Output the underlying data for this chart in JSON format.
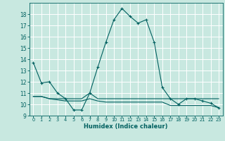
{
  "title": "",
  "xlabel": "Humidex (Indice chaleur)",
  "ylabel": "",
  "bg_color": "#c8e8e0",
  "line_color": "#006060",
  "grid_color": "#ffffff",
  "x_data": [
    0,
    1,
    2,
    3,
    4,
    5,
    6,
    7,
    8,
    9,
    10,
    11,
    12,
    13,
    14,
    15,
    16,
    17,
    18,
    19,
    20,
    21,
    22,
    23
  ],
  "y_main": [
    13.7,
    11.9,
    12.0,
    11.0,
    10.5,
    9.5,
    9.5,
    11.0,
    13.3,
    15.5,
    17.5,
    18.5,
    17.8,
    17.2,
    17.5,
    15.5,
    11.5,
    10.5,
    10.0,
    10.5,
    10.5,
    10.3,
    10.1,
    9.7
  ],
  "flat_vals": [
    10.7,
    10.7,
    10.5,
    10.5,
    10.5,
    10.5,
    10.5,
    11.0,
    10.5,
    10.5,
    10.5,
    10.5,
    10.5,
    10.5,
    10.5,
    10.5,
    10.5,
    10.5,
    10.5,
    10.5,
    10.5,
    10.5,
    10.5,
    10.5
  ],
  "flat_vals2": [
    10.7,
    10.7,
    10.5,
    10.4,
    10.3,
    10.3,
    10.3,
    10.5,
    10.3,
    10.2,
    10.2,
    10.2,
    10.2,
    10.2,
    10.2,
    10.2,
    10.2,
    9.9,
    9.9,
    9.9,
    9.9,
    9.9,
    9.9,
    9.7
  ],
  "ylim": [
    9,
    19
  ],
  "xlim": [
    -0.5,
    23.5
  ],
  "yticks": [
    9,
    10,
    11,
    12,
    13,
    14,
    15,
    16,
    17,
    18
  ],
  "xticks": [
    0,
    1,
    2,
    3,
    4,
    5,
    6,
    7,
    8,
    9,
    10,
    11,
    12,
    13,
    14,
    15,
    16,
    17,
    18,
    19,
    20,
    21,
    22,
    23
  ],
  "xlabel_fontsize": 6.0,
  "ytick_fontsize": 5.5,
  "xtick_fontsize": 4.8
}
